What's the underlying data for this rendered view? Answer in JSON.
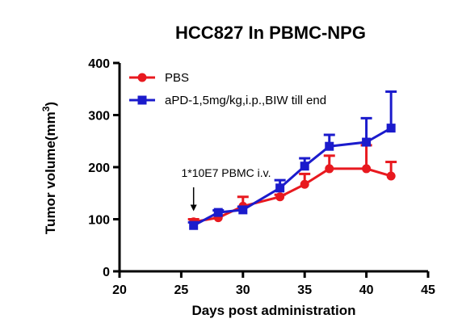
{
  "chart_data": {
    "type": "line",
    "title": "HCC827 In PBMC-NPG",
    "xlabel": "Days post administration",
    "ylabel": "Tumor volume(mm3)",
    "ylabel_main": "Tumor volume(mm",
    "ylabel_sup": "3",
    "ylabel_close": ")",
    "xlim": [
      20,
      45
    ],
    "ylim": [
      0,
      400
    ],
    "xticks": [
      20,
      25,
      30,
      35,
      40,
      45
    ],
    "yticks": [
      0,
      100,
      200,
      300,
      400
    ],
    "xtick_labels": [
      "20",
      "25",
      "30",
      "35",
      "40",
      "45"
    ],
    "ytick_labels": [
      "0",
      "100",
      "200",
      "300",
      "400"
    ],
    "legend_position": "top-left",
    "grid": false,
    "series": [
      {
        "name": "PBS",
        "color": "#e8191f",
        "marker": "circle",
        "x": [
          26,
          28,
          30,
          33,
          35,
          37,
          40,
          42
        ],
        "y": [
          95,
          103,
          125,
          143,
          167,
          197,
          197,
          183
        ],
        "error_up": [
          5,
          4,
          18,
          4,
          20,
          25,
          45,
          27
        ]
      },
      {
        "name": "aPD-1,5mg/kg,i.p.,BIW till end",
        "color": "#1b1bcc",
        "marker": "square",
        "x": [
          26,
          28,
          30,
          33,
          35,
          37,
          40,
          42
        ],
        "y": [
          88,
          113,
          118,
          160,
          202,
          240,
          248,
          275
        ],
        "error_up": [
          6,
          4,
          6,
          15,
          15,
          22,
          46,
          70
        ]
      }
    ],
    "annotations": [
      {
        "text": "1*10E7 PBMC i.v.",
        "x": 26,
        "arrow_to_y": 100
      }
    ]
  }
}
